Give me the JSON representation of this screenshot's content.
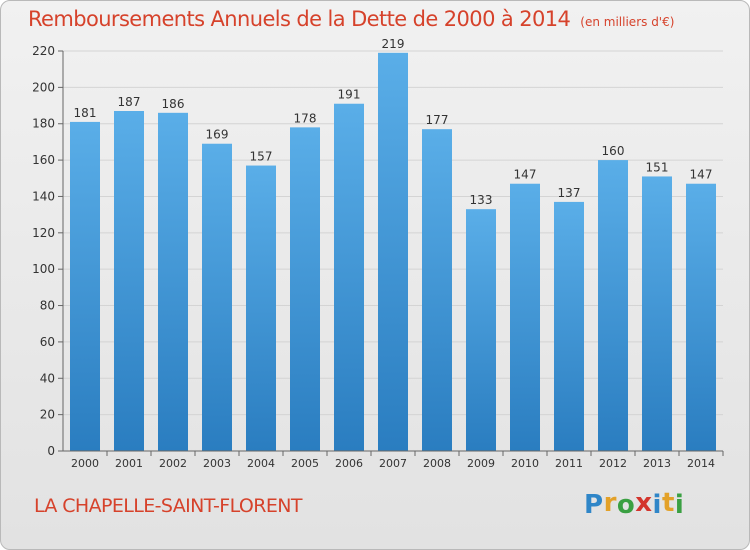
{
  "header": {
    "title": "Remboursements Annuels de la Dette de 2000 à 2014",
    "unit": "(en milliers d'€)"
  },
  "footer": {
    "place": "LA CHAPELLE-SAINT-FLORENT"
  },
  "logo": {
    "text": "Proxiti",
    "letters": [
      {
        "char": "P",
        "color": "#2f86c8"
      },
      {
        "char": "r",
        "color": "#e3a128"
      },
      {
        "char": "o",
        "color": "#3aa042"
      },
      {
        "char": "x",
        "color": "#d3352d"
      },
      {
        "char": "i",
        "color": "#2f86c8"
      },
      {
        "char": "t",
        "color": "#e3a128"
      },
      {
        "char": "i",
        "color": "#3aa042"
      }
    ]
  },
  "colors": {
    "title": "#d6422b",
    "bar_top": "#5aaee8",
    "bar_bottom": "#2a7dc0",
    "grid": "#d4d4d4",
    "axis": "#666666",
    "text": "#333333"
  },
  "chart_data": {
    "type": "bar",
    "title": "Remboursements Annuels de la Dette de 2000 à 2014",
    "subtitle": "(en milliers d'€)",
    "xlabel": "",
    "ylabel": "",
    "categories": [
      "2000",
      "2001",
      "2002",
      "2003",
      "2004",
      "2005",
      "2006",
      "2007",
      "2008",
      "2009",
      "2010",
      "2011",
      "2012",
      "2013",
      "2014"
    ],
    "values": [
      181,
      187,
      186,
      169,
      157,
      178,
      191,
      219,
      177,
      133,
      147,
      137,
      160,
      151,
      147
    ],
    "ylim": [
      0,
      220
    ],
    "yticks": [
      0,
      20,
      40,
      60,
      80,
      100,
      120,
      140,
      160,
      180,
      200,
      220
    ],
    "grid": true,
    "legend": "none"
  }
}
